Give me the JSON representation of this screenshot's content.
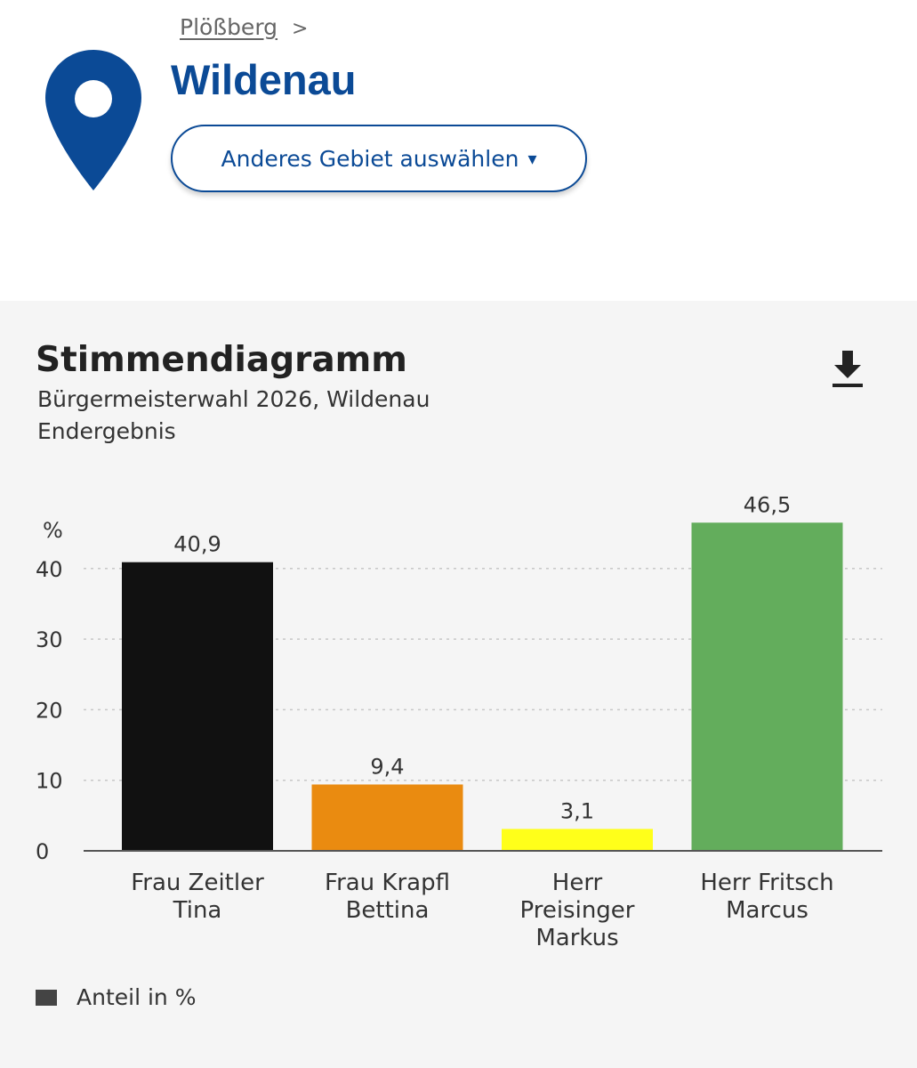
{
  "breadcrumb": {
    "parent": "Plößberg",
    "separator": ">"
  },
  "region": {
    "title": "Wildenau",
    "select_button": "Anderes Gebiet auswählen",
    "select_caret": "▾"
  },
  "icons": {
    "location": "location-pin-icon",
    "download": "download-icon"
  },
  "colors": {
    "brand": "#0b4a96"
  },
  "chart_data": {
    "type": "bar",
    "title": "Stimmendiagramm",
    "subtitle": "Bürgermeisterwahl 2026, Wildenau",
    "note": "Endergebnis",
    "ylabel": "%",
    "ylim": [
      0,
      46.5
    ],
    "yticks": [
      "0",
      "10",
      "20",
      "30",
      "40"
    ],
    "categories": [
      [
        "Frau Zeitler",
        "Tina"
      ],
      [
        "Frau Krapfl",
        "Bettina"
      ],
      [
        "Herr",
        "Preisinger",
        "Markus"
      ],
      [
        "Herr Fritsch",
        "Marcus"
      ]
    ],
    "values": [
      40.9,
      9.4,
      3.1,
      46.5
    ],
    "value_labels": [
      "40,9",
      "9,4",
      "3,1",
      "46,5"
    ],
    "colors": [
      "#111111",
      "#ea8b10",
      "#ffff1a",
      "#63ad5c"
    ],
    "legend": {
      "label": "Anteil in %",
      "color": "#444444",
      "position": "bottom-left"
    },
    "grid": true
  }
}
